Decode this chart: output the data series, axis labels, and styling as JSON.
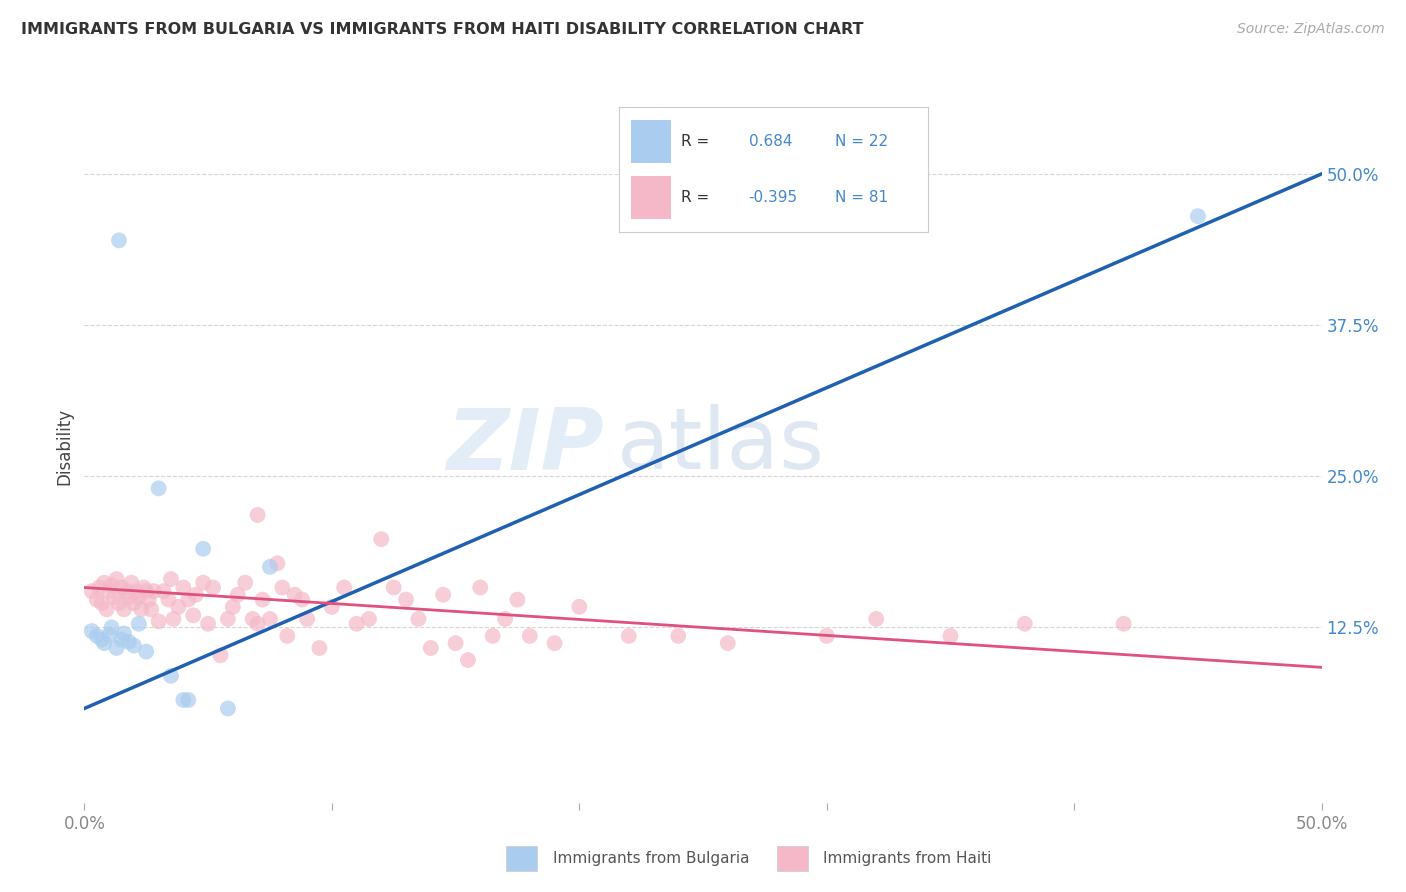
{
  "title": "IMMIGRANTS FROM BULGARIA VS IMMIGRANTS FROM HAITI DISABILITY CORRELATION CHART",
  "source": "Source: ZipAtlas.com",
  "ylabel": "Disability",
  "xlim": [
    0.0,
    0.5
  ],
  "ylim": [
    -0.02,
    0.57
  ],
  "yticks": [
    0.0,
    0.125,
    0.25,
    0.375,
    0.5
  ],
  "ytick_labels": [
    "",
    "12.5%",
    "25.0%",
    "37.5%",
    "50.0%"
  ],
  "watermark_zip": "ZIP",
  "watermark_atlas": "atlas",
  "legend_r1": "R = ",
  "legend_v1": " 0.684",
  "legend_n1": "  N = 22",
  "legend_r2": "R = ",
  "legend_v2": "-0.395",
  "legend_n2": "  N = 81",
  "bulgaria_color": "#aaccee",
  "haiti_color": "#f4b8c8",
  "bulgaria_line_color": "#2060b0",
  "haiti_line_color": "#e05080",
  "bg_color": "#ffffff",
  "grid_color": "#cccccc",
  "right_tick_color": "#4488cc",
  "bulgaria_points": [
    [
      0.003,
      0.122
    ],
    [
      0.005,
      0.118
    ],
    [
      0.007,
      0.115
    ],
    [
      0.008,
      0.112
    ],
    [
      0.01,
      0.119
    ],
    [
      0.011,
      0.125
    ],
    [
      0.013,
      0.108
    ],
    [
      0.015,
      0.115
    ],
    [
      0.016,
      0.12
    ],
    [
      0.018,
      0.113
    ],
    [
      0.02,
      0.11
    ],
    [
      0.022,
      0.128
    ],
    [
      0.025,
      0.105
    ],
    [
      0.03,
      0.24
    ],
    [
      0.035,
      0.085
    ],
    [
      0.04,
      0.065
    ],
    [
      0.042,
      0.065
    ],
    [
      0.048,
      0.19
    ],
    [
      0.058,
      0.058
    ],
    [
      0.075,
      0.175
    ],
    [
      0.45,
      0.465
    ],
    [
      0.014,
      0.445
    ]
  ],
  "haiti_points": [
    [
      0.003,
      0.155
    ],
    [
      0.005,
      0.148
    ],
    [
      0.006,
      0.158
    ],
    [
      0.007,
      0.145
    ],
    [
      0.008,
      0.162
    ],
    [
      0.009,
      0.14
    ],
    [
      0.01,
      0.155
    ],
    [
      0.011,
      0.16
    ],
    [
      0.012,
      0.15
    ],
    [
      0.013,
      0.165
    ],
    [
      0.014,
      0.145
    ],
    [
      0.015,
      0.158
    ],
    [
      0.016,
      0.14
    ],
    [
      0.017,
      0.155
    ],
    [
      0.018,
      0.15
    ],
    [
      0.019,
      0.162
    ],
    [
      0.02,
      0.145
    ],
    [
      0.021,
      0.155
    ],
    [
      0.022,
      0.15
    ],
    [
      0.023,
      0.14
    ],
    [
      0.024,
      0.158
    ],
    [
      0.025,
      0.155
    ],
    [
      0.026,
      0.148
    ],
    [
      0.027,
      0.14
    ],
    [
      0.028,
      0.155
    ],
    [
      0.03,
      0.13
    ],
    [
      0.032,
      0.155
    ],
    [
      0.034,
      0.148
    ],
    [
      0.035,
      0.165
    ],
    [
      0.036,
      0.132
    ],
    [
      0.038,
      0.142
    ],
    [
      0.04,
      0.158
    ],
    [
      0.042,
      0.148
    ],
    [
      0.044,
      0.135
    ],
    [
      0.045,
      0.152
    ],
    [
      0.048,
      0.162
    ],
    [
      0.05,
      0.128
    ],
    [
      0.052,
      0.158
    ],
    [
      0.055,
      0.102
    ],
    [
      0.058,
      0.132
    ],
    [
      0.06,
      0.142
    ],
    [
      0.062,
      0.152
    ],
    [
      0.065,
      0.162
    ],
    [
      0.068,
      0.132
    ],
    [
      0.07,
      0.128
    ],
    [
      0.072,
      0.148
    ],
    [
      0.075,
      0.132
    ],
    [
      0.078,
      0.178
    ],
    [
      0.08,
      0.158
    ],
    [
      0.082,
      0.118
    ],
    [
      0.085,
      0.152
    ],
    [
      0.088,
      0.148
    ],
    [
      0.09,
      0.132
    ],
    [
      0.095,
      0.108
    ],
    [
      0.1,
      0.142
    ],
    [
      0.105,
      0.158
    ],
    [
      0.11,
      0.128
    ],
    [
      0.115,
      0.132
    ],
    [
      0.12,
      0.198
    ],
    [
      0.125,
      0.158
    ],
    [
      0.13,
      0.148
    ],
    [
      0.135,
      0.132
    ],
    [
      0.14,
      0.108
    ],
    [
      0.145,
      0.152
    ],
    [
      0.15,
      0.112
    ],
    [
      0.155,
      0.098
    ],
    [
      0.16,
      0.158
    ],
    [
      0.165,
      0.118
    ],
    [
      0.17,
      0.132
    ],
    [
      0.175,
      0.148
    ],
    [
      0.18,
      0.118
    ],
    [
      0.19,
      0.112
    ],
    [
      0.2,
      0.142
    ],
    [
      0.22,
      0.118
    ],
    [
      0.24,
      0.118
    ],
    [
      0.26,
      0.112
    ],
    [
      0.3,
      0.118
    ],
    [
      0.32,
      0.132
    ],
    [
      0.35,
      0.118
    ],
    [
      0.38,
      0.128
    ],
    [
      0.42,
      0.128
    ],
    [
      0.07,
      0.218
    ]
  ],
  "bulgaria_line": [
    [
      0.0,
      0.058
    ],
    [
      0.5,
      0.5
    ]
  ],
  "haiti_line": [
    [
      0.0,
      0.158
    ],
    [
      0.5,
      0.092
    ]
  ]
}
